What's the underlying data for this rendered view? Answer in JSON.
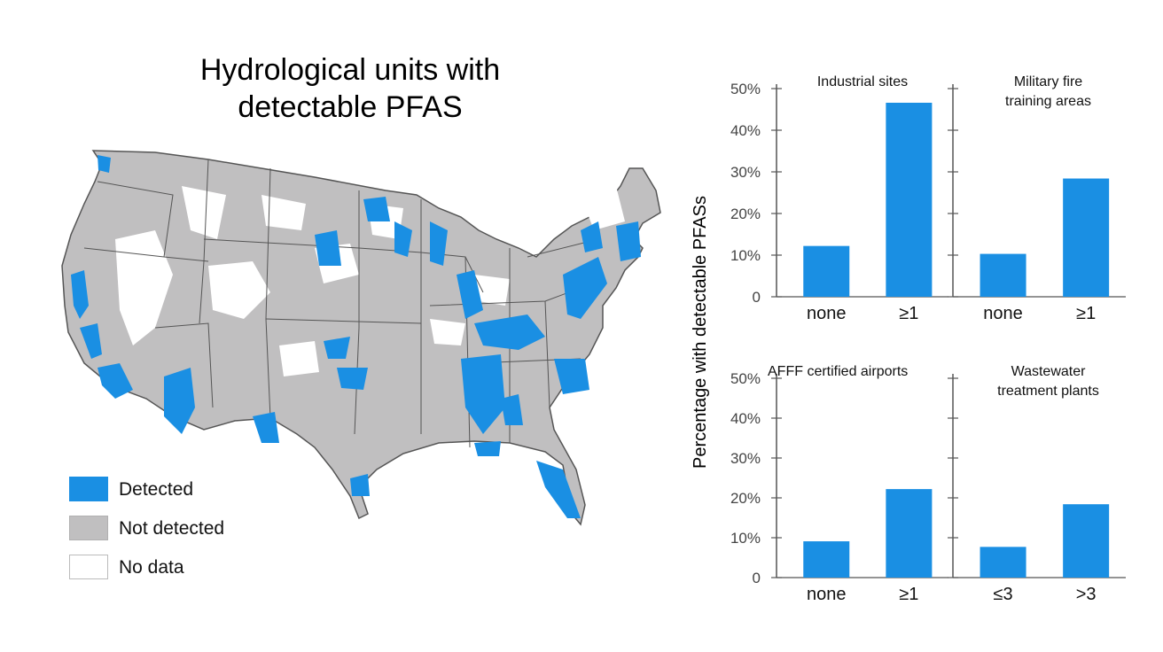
{
  "map": {
    "title_line1": "Hydrological units with",
    "title_line2": "detectable PFAS",
    "legend": [
      {
        "label": "Detected",
        "color": "#1a8fe3"
      },
      {
        "label": "Not detected",
        "color": "#c0bfc0"
      },
      {
        "label": "No data",
        "color": "#ffffff"
      }
    ],
    "colors": {
      "detected": "#1a8fe3",
      "not_detected": "#c0bfc0",
      "no_data": "#ffffff",
      "border": "#555555"
    }
  },
  "chart_data": [
    {
      "type": "bar",
      "title": "Industrial sites",
      "categories": [
        "none",
        "≥1"
      ],
      "values": [
        12.2,
        46.6
      ],
      "ylabel": "Percentage with detectable PFASs",
      "ylim": [
        0,
        50
      ],
      "yticks": [
        "0",
        "10%",
        "20%",
        "30%",
        "40%",
        "50%"
      ],
      "color": "#1a8fe3"
    },
    {
      "type": "bar",
      "title": "Military fire training areas",
      "title_lines": [
        "Military fire",
        "training areas"
      ],
      "categories": [
        "none",
        "≥1"
      ],
      "values": [
        10.3,
        28.4
      ],
      "ylim": [
        0,
        50
      ],
      "color": "#1a8fe3"
    },
    {
      "type": "bar",
      "title": "AFFF certified airports",
      "categories": [
        "none",
        "≥1"
      ],
      "values": [
        9.1,
        22.2
      ],
      "ylabel": "Percentage with detectable PFASs",
      "ylim": [
        0,
        50
      ],
      "yticks": [
        "0",
        "10%",
        "20%",
        "30%",
        "40%",
        "50%"
      ],
      "color": "#1a8fe3"
    },
    {
      "type": "bar",
      "title": "Wastewater treatment plants",
      "title_lines": [
        "Wastewater",
        "treatment plants"
      ],
      "categories": [
        "≤3",
        ">3"
      ],
      "values": [
        7.7,
        18.4
      ],
      "ylim": [
        0,
        50
      ],
      "color": "#1a8fe3"
    }
  ],
  "ylabel": "Percentage with detectable PFASs"
}
